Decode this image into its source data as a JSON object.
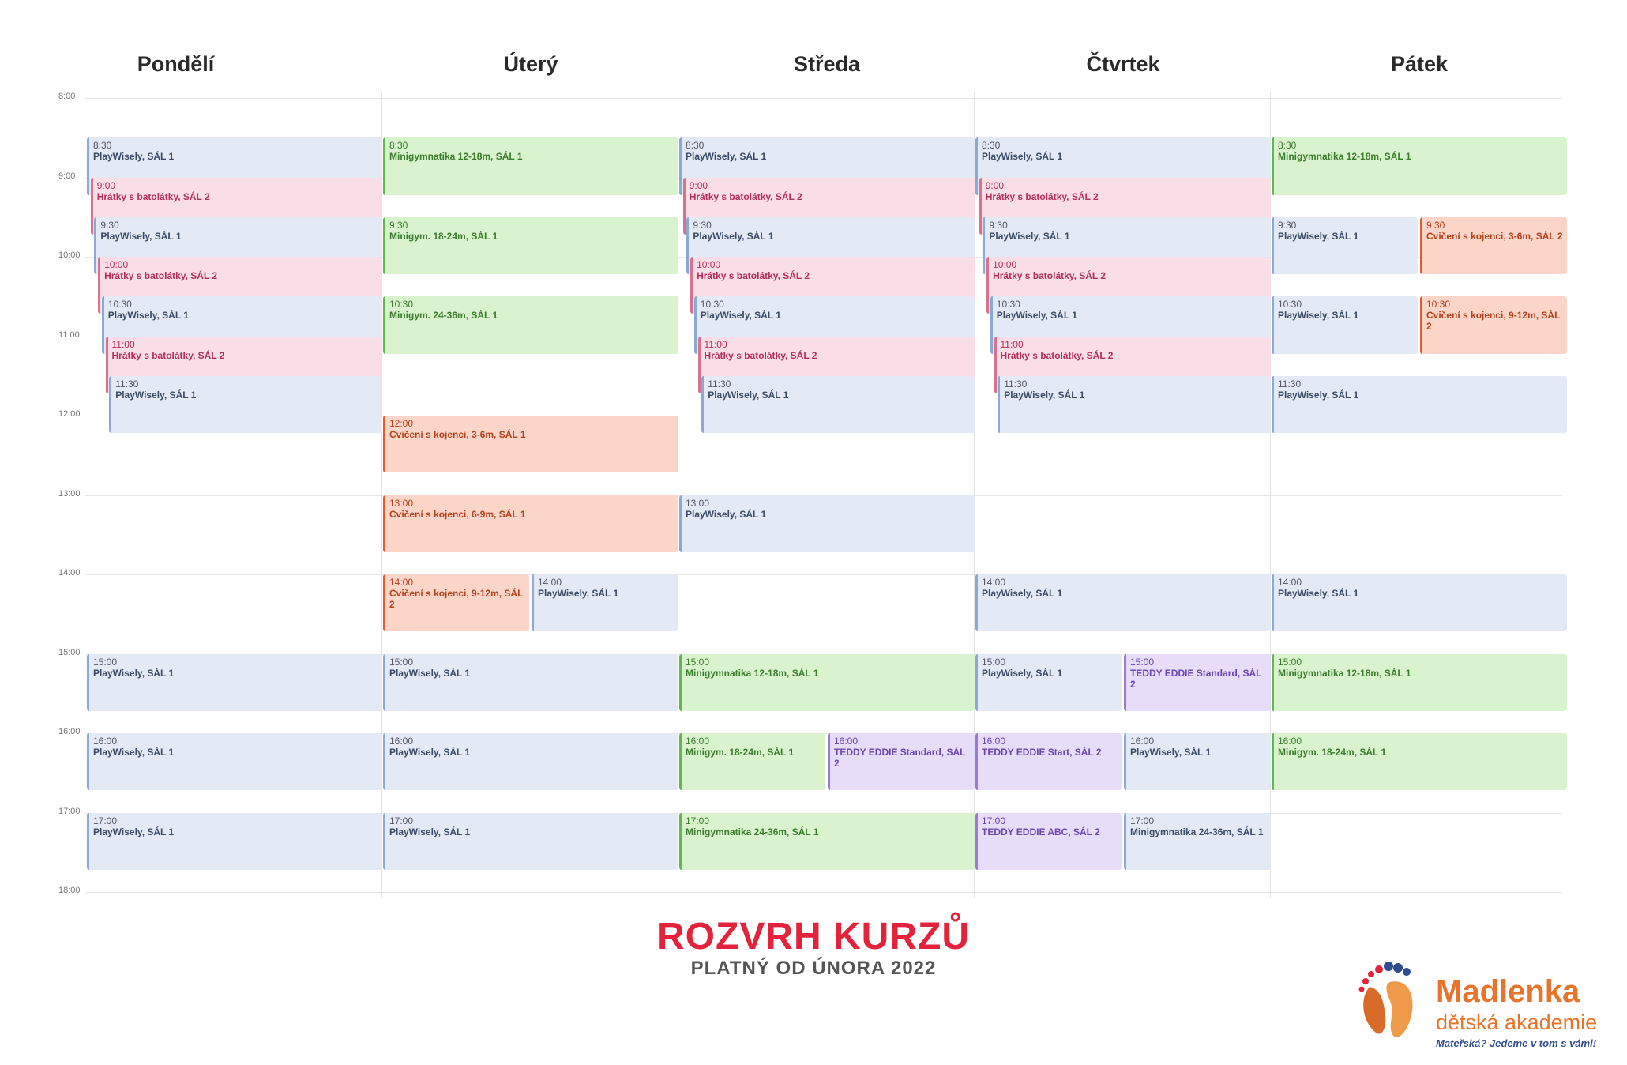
{
  "days": [
    "Pondělí",
    "Úterý",
    "Středa",
    "Čtvrtek",
    "Pátek"
  ],
  "times": [
    "8:00",
    "9:00",
    "10:00",
    "11:00",
    "12:00",
    "13:00",
    "14:00",
    "15:00",
    "16:00",
    "17:00",
    "18:00"
  ],
  "colors": {
    "blue": "#e3eaf5",
    "pink": "#f9dde7",
    "green": "#d9f3cf",
    "orange": "#fbd5c8",
    "purple": "#e7ddf9"
  },
  "events": [
    {
      "day": 0,
      "start": "8:30",
      "name": "PlayWisely, SÁL 1",
      "color": "blue"
    },
    {
      "day": 0,
      "start": "9:00",
      "name": "Hrátky s batolátky, SÁL 2",
      "color": "pink"
    },
    {
      "day": 0,
      "start": "9:30",
      "name": "PlayWisely, SÁL 1",
      "color": "blue"
    },
    {
      "day": 0,
      "start": "10:00",
      "name": "Hrátky s batolátky, SÁL 2",
      "color": "pink"
    },
    {
      "day": 0,
      "start": "10:30",
      "name": "PlayWisely, SÁL 1",
      "color": "blue"
    },
    {
      "day": 0,
      "start": "11:00",
      "name": "Hrátky s batolátky, SÁL 2",
      "color": "pink"
    },
    {
      "day": 0,
      "start": "11:30",
      "name": "PlayWisely, SÁL 1",
      "color": "blue"
    },
    {
      "day": 0,
      "start": "15:00",
      "name": "PlayWisely, SÁL 1",
      "color": "blue"
    },
    {
      "day": 0,
      "start": "16:00",
      "name": "PlayWisely, SÁL 1",
      "color": "blue"
    },
    {
      "day": 0,
      "start": "17:00",
      "name": "PlayWisely, SÁL 1",
      "color": "blue"
    },
    {
      "day": 1,
      "start": "8:30",
      "name": "Minigymnatika 12-18m, SÁL 1",
      "color": "green"
    },
    {
      "day": 1,
      "start": "9:30",
      "name": "Minigym. 18-24m, SÁL 1",
      "color": "green"
    },
    {
      "day": 1,
      "start": "10:30",
      "name": "Minigym. 24-36m, SÁL 1",
      "color": "green"
    },
    {
      "day": 1,
      "start": "12:00",
      "name": "Cvičení s kojenci, 3-6m, SÁL 1",
      "color": "orange"
    },
    {
      "day": 1,
      "start": "13:00",
      "name": "Cvičení s kojenci, 6-9m, SÁL 1",
      "color": "orange"
    },
    {
      "day": 1,
      "start": "14:00",
      "name": "Cvičení s kojenci, 9-12m, SÁL 2",
      "color": "orange",
      "half": 0
    },
    {
      "day": 1,
      "start": "14:00",
      "name": "PlayWisely, SÁL 1",
      "color": "blue",
      "half": 1
    },
    {
      "day": 1,
      "start": "15:00",
      "name": "PlayWisely, SÁL 1",
      "color": "blue"
    },
    {
      "day": 1,
      "start": "16:00",
      "name": "PlayWisely, SÁL 1",
      "color": "blue"
    },
    {
      "day": 1,
      "start": "17:00",
      "name": "PlayWisely, SÁL 1",
      "color": "blue"
    },
    {
      "day": 2,
      "start": "8:30",
      "name": "PlayWisely, SÁL 1",
      "color": "blue"
    },
    {
      "day": 2,
      "start": "9:00",
      "name": "Hrátky s batolátky, SÁL 2",
      "color": "pink"
    },
    {
      "day": 2,
      "start": "9:30",
      "name": "PlayWisely, SÁL 1",
      "color": "blue"
    },
    {
      "day": 2,
      "start": "10:00",
      "name": "Hrátky s batolátky, SÁL 2",
      "color": "pink"
    },
    {
      "day": 2,
      "start": "10:30",
      "name": "PlayWisely, SÁL 1",
      "color": "blue"
    },
    {
      "day": 2,
      "start": "11:00",
      "name": "Hrátky s batolátky, SÁL 2",
      "color": "pink"
    },
    {
      "day": 2,
      "start": "11:30",
      "name": "PlayWisely, SÁL 1",
      "color": "blue"
    },
    {
      "day": 2,
      "start": "13:00",
      "name": "PlayWisely, SÁL 1",
      "color": "blue"
    },
    {
      "day": 2,
      "start": "15:00",
      "name": "Minigymnatika 12-18m, SÁL 1",
      "color": "green"
    },
    {
      "day": 2,
      "start": "16:00",
      "name": "Minigym. 18-24m, SÁL 1",
      "color": "green",
      "half": 0
    },
    {
      "day": 2,
      "start": "16:00",
      "name": "TEDDY EDDIE Standard, SÁL 2",
      "color": "purple",
      "half": 1
    },
    {
      "day": 2,
      "start": "17:00",
      "name": "Minigymnatika 24-36m, SÁL 1",
      "color": "green"
    },
    {
      "day": 3,
      "start": "8:30",
      "name": "PlayWisely, SÁL 1",
      "color": "blue"
    },
    {
      "day": 3,
      "start": "9:00",
      "name": "Hrátky s batolátky, SÁL 2",
      "color": "pink"
    },
    {
      "day": 3,
      "start": "9:30",
      "name": "PlayWisely, SÁL 1",
      "color": "blue"
    },
    {
      "day": 3,
      "start": "10:00",
      "name": "Hrátky s batolátky, SÁL 2",
      "color": "pink"
    },
    {
      "day": 3,
      "start": "10:30",
      "name": "PlayWisely, SÁL 1",
      "color": "blue"
    },
    {
      "day": 3,
      "start": "11:00",
      "name": "Hrátky s batolátky, SÁL 2",
      "color": "pink"
    },
    {
      "day": 3,
      "start": "11:30",
      "name": "PlayWisely, SÁL 1",
      "color": "blue"
    },
    {
      "day": 3,
      "start": "14:00",
      "name": "PlayWisely, SÁL 1",
      "color": "blue"
    },
    {
      "day": 3,
      "start": "15:00",
      "name": "PlayWisely, SÁL 1",
      "color": "blue",
      "half": 0
    },
    {
      "day": 3,
      "start": "15:00",
      "name": "TEDDY EDDIE Standard, SÁL 2",
      "color": "purple",
      "half": 1
    },
    {
      "day": 3,
      "start": "16:00",
      "name": "TEDDY EDDIE Start, SÁL 2",
      "color": "purple",
      "half": 0
    },
    {
      "day": 3,
      "start": "16:00",
      "name": "PlayWisely, SÁL 1",
      "color": "blue",
      "half": 1
    },
    {
      "day": 3,
      "start": "17:00",
      "name": "TEDDY EDDIE ABC, SÁL 2",
      "color": "purple",
      "half": 0
    },
    {
      "day": 3,
      "start": "17:00",
      "name": "Minigymnatika 24-36m, SÁL 1",
      "color": "blue",
      "half": 1
    },
    {
      "day": 4,
      "start": "8:30",
      "name": "Minigymnatika 12-18m, SÁL 1",
      "color": "green"
    },
    {
      "day": 4,
      "start": "9:30",
      "name": "PlayWisely, SÁL 1",
      "color": "blue",
      "half": 0
    },
    {
      "day": 4,
      "start": "9:30",
      "name": "Cvičení s kojenci, 3-6m, SÁL 2",
      "color": "orange",
      "half": 1
    },
    {
      "day": 4,
      "start": "10:30",
      "name": "PlayWisely, SÁL 1",
      "color": "blue",
      "half": 0
    },
    {
      "day": 4,
      "start": "10:30",
      "name": "Cvičení s kojenci, 9-12m, SÁL 2",
      "color": "orange",
      "half": 1
    },
    {
      "day": 4,
      "start": "11:30",
      "name": "PlayWisely, SÁL 1",
      "color": "blue"
    },
    {
      "day": 4,
      "start": "14:00",
      "name": "PlayWisely, SÁL 1",
      "color": "blue"
    },
    {
      "day": 4,
      "start": "15:00",
      "name": "Minigymnatika 12-18m, SÁL 1",
      "color": "green"
    },
    {
      "day": 4,
      "start": "16:00",
      "name": "Minigym. 18-24m, SÁL 1",
      "color": "green"
    }
  ],
  "title": "ROZVRH KURZŮ",
  "subtitle": "PLATNÝ OD ÚNORA 2022",
  "logo": {
    "name": "Madlenka",
    "sub": "dětská akademie",
    "tagline": "Mateřská? Jedeme v tom s vámi!"
  }
}
